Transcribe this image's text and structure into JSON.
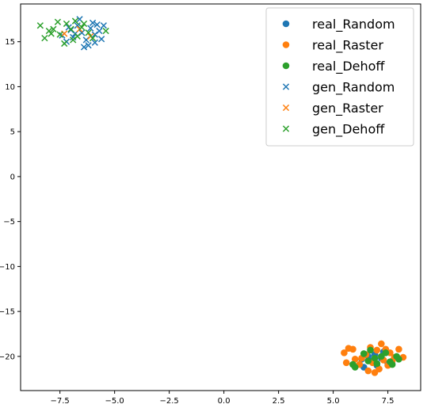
{
  "chart_data": {
    "type": "scatter",
    "title": "",
    "xlabel": "",
    "ylabel": "",
    "xlim": [
      -9.3,
      9.0
    ],
    "ylim": [
      -23.8,
      19.2
    ],
    "xticks": [
      -7.5,
      -5.0,
      -2.5,
      0.0,
      2.5,
      5.0,
      7.5
    ],
    "xtick_labels": [
      "−7.5",
      "−5.0",
      "−2.5",
      "0.0",
      "2.5",
      "5.0",
      "7.5"
    ],
    "yticks": [
      15,
      10,
      5,
      0,
      -5,
      -10,
      -15,
      -20
    ],
    "ytick_labels": [
      "15",
      "10",
      "5",
      "0",
      "−5",
      "−10",
      "−15",
      "−20"
    ],
    "grid": false,
    "legend_position": "top-right",
    "series": [
      {
        "name": "real_Random",
        "marker": "circle",
        "color": "#1f77b4",
        "points": [
          [
            6.3,
            -20.3
          ],
          [
            6.8,
            -20.5
          ],
          [
            7.0,
            -21.0
          ],
          [
            7.3,
            -19.5
          ],
          [
            6.6,
            -20.0
          ],
          [
            7.5,
            -20.8
          ],
          [
            6.9,
            -19.8
          ],
          [
            6.4,
            -21.2
          ],
          [
            7.2,
            -20.2
          ]
        ]
      },
      {
        "name": "real_Raster",
        "marker": "circle",
        "color": "#ff7f0e",
        "points": [
          [
            5.5,
            -19.6
          ],
          [
            5.7,
            -19.1
          ],
          [
            5.9,
            -19.2
          ],
          [
            5.6,
            -20.7
          ],
          [
            6.0,
            -20.3
          ],
          [
            6.3,
            -20.2
          ],
          [
            6.5,
            -19.8
          ],
          [
            6.7,
            -19.0
          ],
          [
            7.0,
            -19.3
          ],
          [
            7.2,
            -18.6
          ],
          [
            7.4,
            -19.2
          ],
          [
            7.6,
            -19.6
          ],
          [
            7.8,
            -20.1
          ],
          [
            8.0,
            -19.2
          ],
          [
            8.2,
            -20.1
          ],
          [
            6.6,
            -21.6
          ],
          [
            6.9,
            -21.8
          ],
          [
            7.1,
            -21.4
          ],
          [
            6.8,
            -20.7
          ],
          [
            7.3,
            -20.4
          ],
          [
            7.5,
            -21.0
          ],
          [
            6.2,
            -20.9
          ],
          [
            7.7,
            -20.5
          ]
        ]
      },
      {
        "name": "real_Dehoff",
        "marker": "circle",
        "color": "#2ca02c",
        "points": [
          [
            5.9,
            -20.9
          ],
          [
            6.0,
            -21.2
          ],
          [
            6.4,
            -19.7
          ],
          [
            6.7,
            -19.3
          ],
          [
            6.9,
            -20.2
          ],
          [
            7.2,
            -20.0
          ],
          [
            7.4,
            -19.6
          ],
          [
            7.6,
            -20.6
          ],
          [
            7.9,
            -20.0
          ],
          [
            8.0,
            -20.3
          ],
          [
            7.0,
            -20.8
          ],
          [
            6.6,
            -20.5
          ],
          [
            7.7,
            -20.9
          ]
        ]
      },
      {
        "name": "gen_Random",
        "marker": "x",
        "color": "#1f77b4",
        "points": [
          [
            -7.4,
            15.7
          ],
          [
            -7.2,
            15.0
          ],
          [
            -7.0,
            16.3
          ],
          [
            -6.9,
            15.5
          ],
          [
            -6.7,
            16.8
          ],
          [
            -6.6,
            17.5
          ],
          [
            -6.5,
            16.0
          ],
          [
            -6.3,
            15.2
          ],
          [
            -6.2,
            14.6
          ],
          [
            -6.1,
            16.5
          ],
          [
            -6.0,
            17.1
          ],
          [
            -5.9,
            15.8
          ],
          [
            -5.8,
            16.9
          ],
          [
            -5.7,
            16.2
          ],
          [
            -5.6,
            15.3
          ],
          [
            -5.5,
            16.8
          ],
          [
            -6.8,
            15.9
          ],
          [
            -7.1,
            16.6
          ],
          [
            -6.4,
            14.4
          ],
          [
            -5.9,
            14.9
          ]
        ]
      },
      {
        "name": "gen_Raster",
        "marker": "x",
        "color": "#ff7f0e",
        "points": [
          [
            -7.3,
            15.9
          ],
          [
            -6.6,
            16.4
          ],
          [
            -6.1,
            15.6
          ]
        ]
      },
      {
        "name": "gen_Dehoff",
        "marker": "x",
        "color": "#2ca02c",
        "points": [
          [
            -8.4,
            16.8
          ],
          [
            -8.2,
            15.4
          ],
          [
            -8.0,
            16.2
          ],
          [
            -7.8,
            16.4
          ],
          [
            -7.6,
            17.2
          ],
          [
            -7.5,
            15.8
          ],
          [
            -7.3,
            14.8
          ],
          [
            -7.2,
            17.0
          ],
          [
            -7.0,
            16.4
          ],
          [
            -6.9,
            15.2
          ],
          [
            -6.7,
            15.6
          ],
          [
            -6.5,
            16.6
          ],
          [
            -6.4,
            17.0
          ],
          [
            -6.2,
            16.0
          ],
          [
            -6.0,
            15.4
          ],
          [
            -5.4,
            16.2
          ],
          [
            -7.9,
            15.9
          ],
          [
            -6.8,
            17.3
          ]
        ]
      }
    ]
  }
}
